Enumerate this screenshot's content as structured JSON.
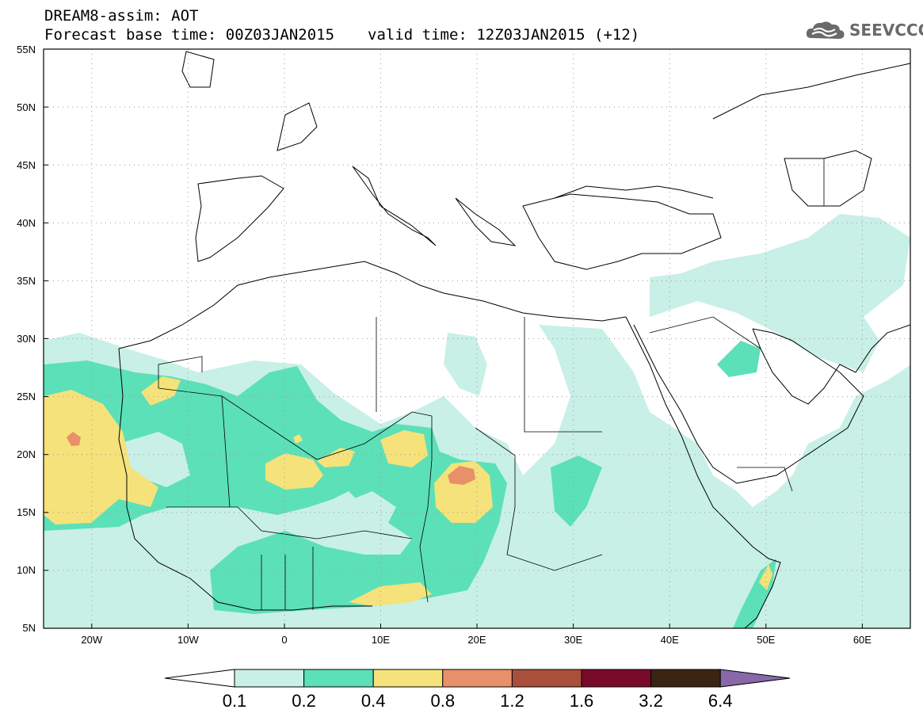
{
  "header": {
    "title": "DREAM8-assim: AOT",
    "base_time": "Forecast base time: 00Z03JAN2015",
    "valid_time": "valid time: 12Z03JAN2015 (+12)"
  },
  "logo": {
    "text": "SEEVCCC",
    "icon": "cloud-icon"
  },
  "map": {
    "lat_labels": [
      "55N",
      "50N",
      "45N",
      "40N",
      "35N",
      "30N",
      "25N",
      "20N",
      "15N",
      "10N",
      "5N"
    ],
    "lon_labels": [
      "20W",
      "10W",
      "0",
      "10E",
      "20E",
      "30E",
      "40E",
      "50E",
      "60E"
    ]
  },
  "chart_data": {
    "type": "heatmap",
    "variable": "AOT",
    "lat_range": [
      5,
      55
    ],
    "lon_range": [
      -25,
      65
    ],
    "color_levels": [
      {
        "min": 0.1,
        "max": 0.2,
        "color": "#c8f0e6"
      },
      {
        "min": 0.2,
        "max": 0.4,
        "color": "#5ce0b8"
      },
      {
        "min": 0.4,
        "max": 0.8,
        "color": "#f5e27a"
      },
      {
        "min": 0.8,
        "max": 1.2,
        "color": "#e8906a"
      },
      {
        "min": 1.2,
        "max": 1.6,
        "color": "#a8503c"
      },
      {
        "min": 1.6,
        "max": 3.2,
        "color": "#7a0a2a"
      },
      {
        "min": 3.2,
        "max": 6.4,
        "color": "#3a2414"
      },
      {
        "min": 6.4,
        "max": null,
        "color": "#8868a8"
      }
    ]
  },
  "legend": {
    "labels": [
      "0.1",
      "0.2",
      "0.4",
      "0.8",
      "1.2",
      "1.6",
      "3.2",
      "6.4"
    ],
    "colors": [
      "#c8f0e6",
      "#5ce0b8",
      "#f5e27a",
      "#e8906a",
      "#a8503c",
      "#7a0a2a",
      "#3a2414"
    ],
    "low_color": "#ffffff",
    "high_color": "#8868a8"
  }
}
